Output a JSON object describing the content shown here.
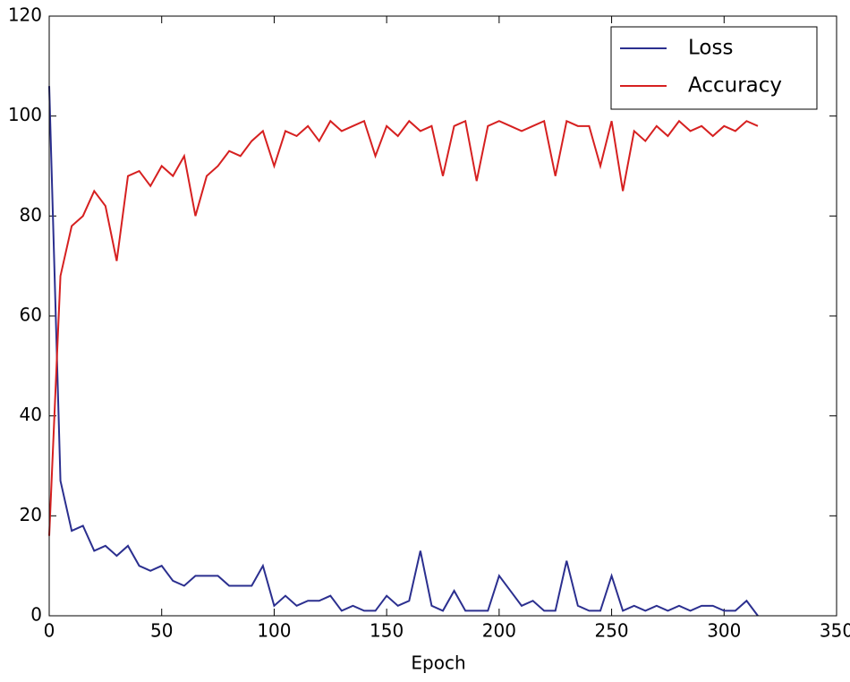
{
  "chart_data": {
    "type": "line",
    "xlabel": "Epoch",
    "x": [
      0,
      5,
      10,
      15,
      20,
      25,
      30,
      35,
      40,
      45,
      50,
      55,
      60,
      65,
      70,
      75,
      80,
      85,
      90,
      95,
      100,
      105,
      110,
      115,
      120,
      125,
      130,
      135,
      140,
      145,
      150,
      155,
      160,
      165,
      170,
      175,
      180,
      185,
      190,
      195,
      200,
      205,
      210,
      215,
      220,
      225,
      230,
      235,
      240,
      245,
      250,
      255,
      260,
      265,
      270,
      275,
      280,
      285,
      290,
      295,
      300,
      305,
      310,
      315
    ],
    "series": [
      {
        "name": "Loss",
        "color": "#2b2f8f",
        "values": [
          106,
          27,
          17,
          18,
          13,
          14,
          12,
          14,
          10,
          9,
          10,
          7,
          6,
          8,
          8,
          8,
          6,
          6,
          6,
          10,
          2,
          4,
          2,
          3,
          3,
          4,
          1,
          2,
          1,
          1,
          4,
          2,
          3,
          13,
          2,
          1,
          5,
          1,
          1,
          1,
          8,
          5,
          2,
          3,
          1,
          1,
          11,
          2,
          1,
          1,
          8,
          1,
          2,
          1,
          2,
          1,
          2,
          1,
          2,
          2,
          1,
          1,
          3,
          0
        ]
      },
      {
        "name": "Accuracy",
        "color": "#d62020",
        "values": [
          16,
          68,
          78,
          80,
          85,
          82,
          71,
          88,
          89,
          86,
          90,
          88,
          92,
          80,
          88,
          90,
          93,
          92,
          95,
          97,
          90,
          97,
          96,
          98,
          95,
          99,
          97,
          98,
          99,
          92,
          98,
          96,
          99,
          97,
          98,
          88,
          98,
          99,
          87,
          98,
          99,
          98,
          97,
          98,
          99,
          88,
          99,
          98,
          98,
          90,
          99,
          85,
          97,
          95,
          98,
          96,
          99,
          97,
          98,
          96,
          98,
          97,
          99,
          98
        ]
      }
    ],
    "xlim": [
      0,
      350
    ],
    "xticks": [
      0,
      50,
      100,
      150,
      200,
      250,
      300,
      350
    ],
    "ylim": [
      0,
      120
    ],
    "yticks": [
      0,
      20,
      40,
      60,
      80,
      100,
      120
    ],
    "legend": "upper right"
  }
}
